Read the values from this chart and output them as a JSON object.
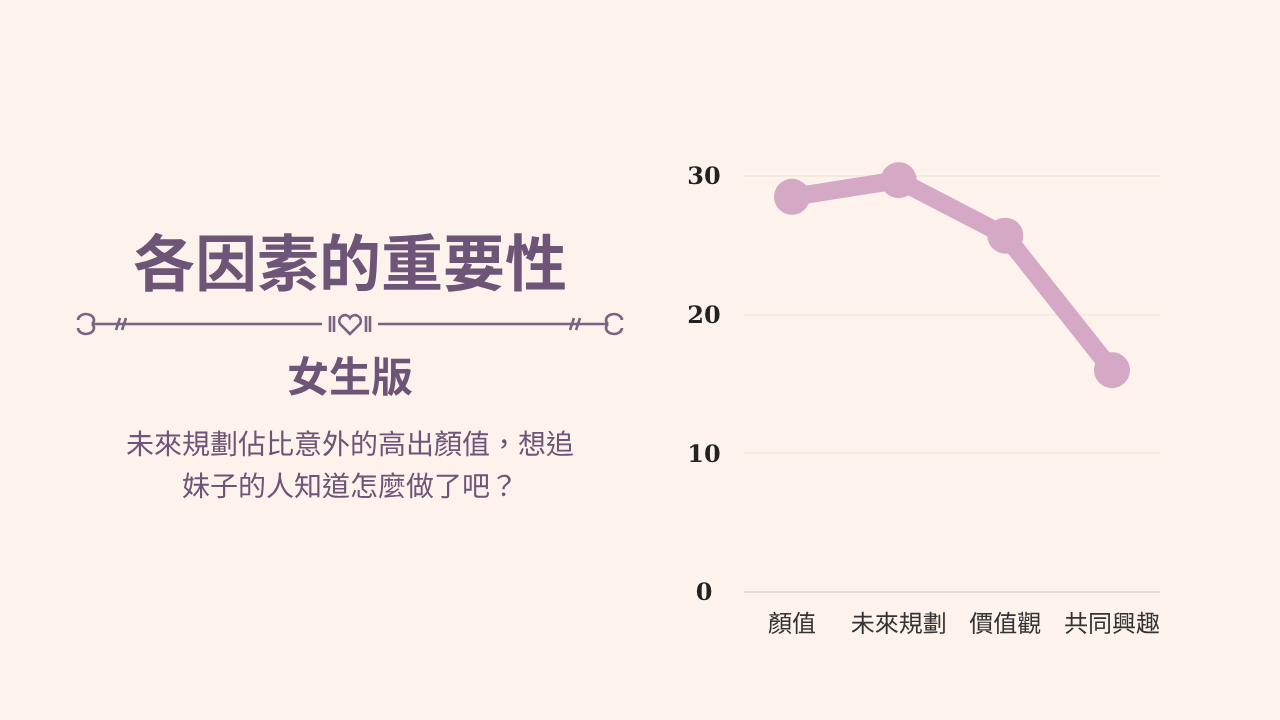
{
  "chart_data": {
    "type": "line",
    "title": "各因素的重要性",
    "subtitle": "女生版",
    "annotations": [
      "未來規劃佔比意外的高出顏值，想追妹子的人知道怎麼做了吧？"
    ],
    "categories": [
      "顏值",
      "未來規劃",
      "價值觀",
      "共同興趣"
    ],
    "series": [
      {
        "color": "#d5a8c6",
        "values": [
          28.5,
          29.7,
          25.7,
          16
        ]
      }
    ],
    "ylim": [
      0,
      30
    ],
    "yticks": [
      0,
      10,
      20,
      30
    ],
    "grid": "y",
    "marker": "circle",
    "line_style": "solid"
  }
}
